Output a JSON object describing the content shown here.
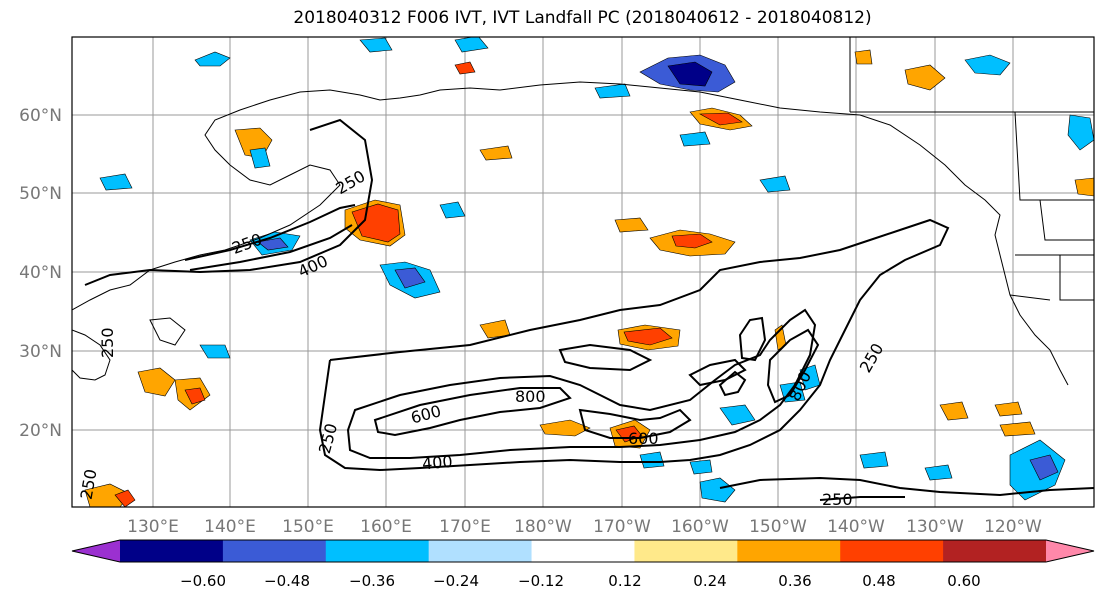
{
  "title": "2018040312 F006 IVT, IVT Landfall PC (2018040612 - 2018040812)",
  "lat_labels": [
    "60°N",
    "50°N",
    "40°N",
    "30°N",
    "20°N"
  ],
  "lon_labels": [
    "130°E",
    "140°E",
    "150°E",
    "160°E",
    "170°E",
    "180°W",
    "170°W",
    "160°W",
    "150°W",
    "140°W",
    "130°W",
    "120°W"
  ],
  "contour_labels": [
    "250",
    "250",
    "400",
    "250",
    "400",
    "800",
    "600",
    "600",
    "800",
    "250",
    "250",
    "250",
    "250"
  ],
  "colorbar": {
    "colors": [
      "#9b30d0",
      "#000088",
      "#3b5bd6",
      "#00bfff",
      "#b0e0ff",
      "#ffffff",
      "#ffe98a",
      "#ffa500",
      "#ff4000",
      "#b22222",
      "#ff88aa"
    ],
    "tick_labels": [
      "−0.60",
      "−0.48",
      "−0.36",
      "−0.24",
      "−0.12",
      "0.12",
      "0.24",
      "0.36",
      "0.48",
      "0.60"
    ]
  }
}
